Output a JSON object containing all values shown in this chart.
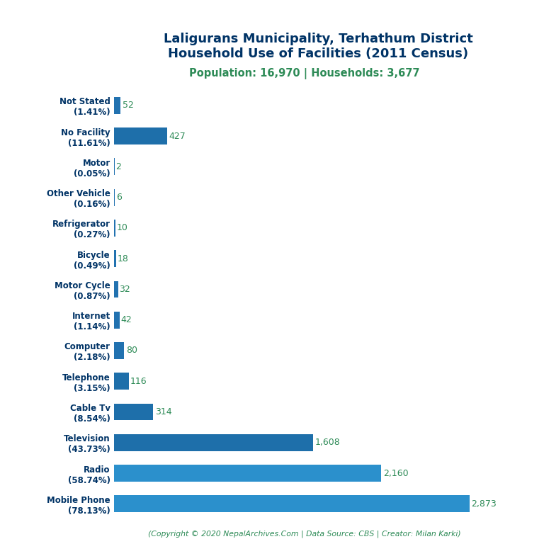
{
  "title_line1": "Laligurans Municipality, Terhathum District",
  "title_line2": "Household Use of Facilities (2011 Census)",
  "subtitle": "Population: 16,970 | Households: 3,677",
  "footer": "(Copyright © 2020 NepalArchives.Com | Data Source: CBS | Creator: Milan Karki)",
  "categories": [
    "Not Stated\n(1.41%)",
    "No Facility\n(11.61%)",
    "Motor\n(0.05%)",
    "Other Vehicle\n(0.16%)",
    "Refrigerator\n(0.27%)",
    "Bicycle\n(0.49%)",
    "Motor Cycle\n(0.87%)",
    "Internet\n(1.14%)",
    "Computer\n(2.18%)",
    "Telephone\n(3.15%)",
    "Cable Tv\n(8.54%)",
    "Television\n(43.73%)",
    "Radio\n(58.74%)",
    "Mobile Phone\n(78.13%)"
  ],
  "values": [
    52,
    427,
    2,
    6,
    10,
    18,
    32,
    42,
    80,
    116,
    314,
    1608,
    2160,
    2873
  ],
  "bar_colors": [
    "#2176ae",
    "#1a6aaf",
    "#2176ae",
    "#2176ae",
    "#2176ae",
    "#2176ae",
    "#2176ae",
    "#2176ae",
    "#2176ae",
    "#1a6aaf",
    "#1a6aaf",
    "#1a6aaf",
    "#2a8fd0",
    "#2a8fd0"
  ],
  "value_color": "#2e8b57",
  "title_color": "#003366",
  "subtitle_color": "#2e8b57",
  "footer_color": "#2e8b57",
  "label_color": "#003366",
  "background_color": "#ffffff",
  "xlim": [
    0,
    3300
  ],
  "bar_height": 0.55
}
